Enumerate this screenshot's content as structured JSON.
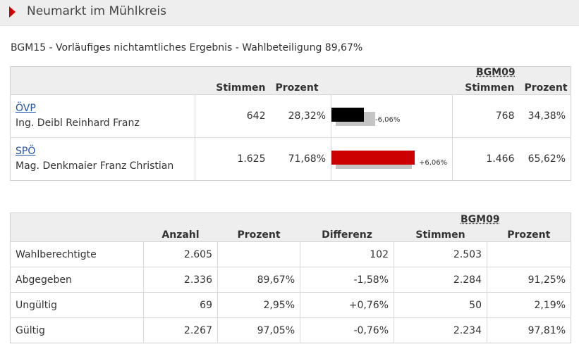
{
  "header": {
    "title": "Neumarkt im Mühlkreis",
    "accent": "#cc0000"
  },
  "subtitle": "BGM15 - Vorläufiges nichtamtliches Ergebnis - Wahlbeteiligung 89,67%",
  "results": {
    "group_label": "BGM09",
    "columns": {
      "stimmen": "Stimmen",
      "prozent": "Prozent",
      "stimmen09": "Stimmen",
      "prozent09": "Prozent"
    },
    "parties": [
      {
        "party": "ÖVP",
        "candidate": "Ing. Deibl Reinhard Franz",
        "stimmen": "642",
        "prozent": "28,32%",
        "diff": "-6,06%",
        "share": 0.2832,
        "share09": 0.3438,
        "bar_color": "#000000",
        "stimmen09": "768",
        "prozent09": "34,38%"
      },
      {
        "party": "SPÖ",
        "candidate": "Mag. Denkmaier Franz Christian",
        "stimmen": "1.625",
        "prozent": "71,68%",
        "diff": "+6,06%",
        "share": 0.7168,
        "share09": 0.6562,
        "bar_color": "#cc0000",
        "stimmen09": "1.466",
        "prozent09": "65,62%"
      }
    ]
  },
  "turnout": {
    "group_label": "BGM09",
    "columns": {
      "anzahl": "Anzahl",
      "prozent": "Prozent",
      "differenz": "Differenz",
      "stimmen09": "Stimmen",
      "prozent09": "Prozent"
    },
    "rows": [
      {
        "label": "Wahlberechtigte",
        "anzahl": "2.605",
        "prozent": "",
        "differenz": "102",
        "stimmen09": "2.503",
        "prozent09": ""
      },
      {
        "label": "Abgegeben",
        "anzahl": "2.336",
        "prozent": "89,67%",
        "differenz": "-1,58%",
        "stimmen09": "2.284",
        "prozent09": "91,25%"
      },
      {
        "label": "Ungültig",
        "anzahl": "69",
        "prozent": "2,95%",
        "differenz": "+0,76%",
        "stimmen09": "50",
        "prozent09": "2,19%"
      },
      {
        "label": "Gültig",
        "anzahl": "2.267",
        "prozent": "97,05%",
        "differenz": "-0,76%",
        "stimmen09": "2.234",
        "prozent09": "97,81%"
      }
    ]
  }
}
